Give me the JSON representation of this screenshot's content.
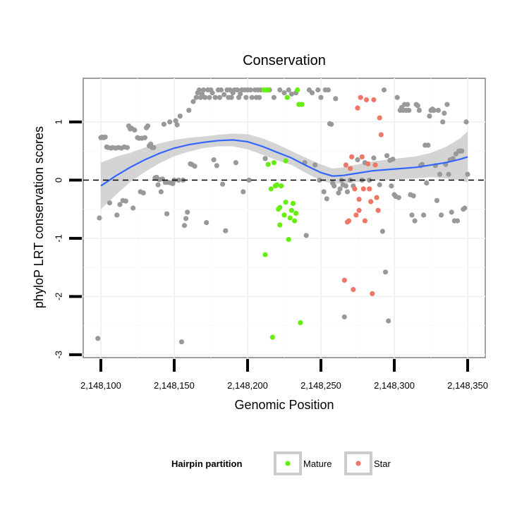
{
  "chart_data": {
    "type": "scatter",
    "title": "Conservation",
    "xlabel": "Genomic Position",
    "ylabel": "phyloP LRT conservation scores",
    "xlim": [
      2148088,
      2148362
    ],
    "ylim": [
      -3.05,
      1.75
    ],
    "x_ticks": [
      2148100,
      2148150,
      2148200,
      2148250,
      2148300,
      2148350
    ],
    "x_tick_labels": [
      "2,148,100",
      "2,148,150",
      "2,148,200",
      "2,148,250",
      "2,148,300",
      "2,148,350"
    ],
    "y_ticks": [
      -3,
      -2,
      -1,
      0,
      1
    ],
    "y_tick_labels": [
      "-3",
      "-2",
      "-1",
      "0",
      "1"
    ],
    "reference_line": {
      "y": 0,
      "style": "dashed"
    },
    "colors": {
      "other": "#999999",
      "mature": "#66ee11",
      "star": "#ee7766",
      "smooth_line": "#3366ff",
      "confidence_band": "#cccccc"
    },
    "legend": {
      "title": "Hairpin partition",
      "entries": [
        {
          "label": "Mature",
          "color": "#66ee11"
        },
        {
          "label": "Star",
          "color": "#ee7766"
        }
      ],
      "position": "bottom"
    },
    "series": [
      {
        "name": "Other",
        "points": [
          [
            2148098,
            -2.72
          ],
          [
            2148099,
            -0.65
          ],
          [
            2148100,
            0.73
          ],
          [
            2148101,
            0.74
          ],
          [
            2148102,
            0.73
          ],
          [
            2148103,
            0.74
          ],
          [
            2148104,
            0.57
          ],
          [
            2148105,
            0.56
          ],
          [
            2148106,
            -0.39
          ],
          [
            2148107,
            0.55
          ],
          [
            2148108,
            0.56
          ],
          [
            2148110,
            0.55
          ],
          [
            2148111,
            -0.6
          ],
          [
            2148112,
            0.56
          ],
          [
            2148113,
            -0.42
          ],
          [
            2148114,
            0.55
          ],
          [
            2148115,
            -0.35
          ],
          [
            2148116,
            0.57
          ],
          [
            2148117,
            -0.36
          ],
          [
            2148118,
            0.56
          ],
          [
            2148119,
            0.93
          ],
          [
            2148120,
            0.88
          ],
          [
            2148121,
            0.89
          ],
          [
            2148122,
            -0.48
          ],
          [
            2148123,
            0.86
          ],
          [
            2148125,
            0.73
          ],
          [
            2148126,
            0.72
          ],
          [
            2148127,
            -0.2
          ],
          [
            2148128,
            0.72
          ],
          [
            2148129,
            -0.22
          ],
          [
            2148130,
            0.73
          ],
          [
            2148131,
            0.9
          ],
          [
            2148132,
            0.93
          ],
          [
            2148133,
            0.59
          ],
          [
            2148134,
            0.62
          ],
          [
            2148135,
            0.56
          ],
          [
            2148136,
            0.56
          ],
          [
            2148137,
            0.04
          ],
          [
            2148138,
            0.05
          ],
          [
            2148139,
            -0.08
          ],
          [
            2148140,
            0.01
          ],
          [
            2148141,
            -0.2
          ],
          [
            2148142,
            0.02
          ],
          [
            2148143,
            0.96
          ],
          [
            2148144,
            -0.04
          ],
          [
            2148145,
            -0.58
          ],
          [
            2148146,
            -0.04
          ],
          [
            2148147,
            1.0
          ],
          [
            2148148,
            -0.05
          ],
          [
            2148149,
            -0.06
          ],
          [
            2148150,
            0.0
          ],
          [
            2148151,
            1.02
          ],
          [
            2148152,
            0.95
          ],
          [
            2148153,
            0.0
          ],
          [
            2148154,
            1.1
          ],
          [
            2148155,
            -2.78
          ],
          [
            2148156,
            0.0
          ],
          [
            2148157,
            -0.78
          ],
          [
            2148158,
            -0.66
          ],
          [
            2148159,
            -0.55
          ],
          [
            2148160,
            1.2
          ],
          [
            2148161,
            0.28
          ],
          [
            2148162,
            0.27
          ],
          [
            2148163,
            1.35
          ],
          [
            2148164,
            0.24
          ],
          [
            2148165,
            1.42
          ],
          [
            2148166,
            1.5
          ],
          [
            2148167,
            1.55
          ],
          [
            2148168,
            1.42
          ],
          [
            2148169,
            1.48
          ],
          [
            2148170,
            1.55
          ],
          [
            2148171,
            1.42
          ],
          [
            2148172,
            -0.73
          ],
          [
            2148173,
            1.55
          ],
          [
            2148174,
            1.42
          ],
          [
            2148175,
            1.55
          ],
          [
            2148176,
            1.5
          ],
          [
            2148177,
            0.35
          ],
          [
            2148178,
            1.42
          ],
          [
            2148179,
            0.25
          ],
          [
            2148180,
            1.55
          ],
          [
            2148181,
            1.42
          ],
          [
            2148182,
            1.55
          ],
          [
            2148183,
            -0.07
          ],
          [
            2148184,
            1.47
          ],
          [
            2148185,
            -0.87
          ],
          [
            2148186,
            1.55
          ],
          [
            2148187,
            1.42
          ],
          [
            2148188,
            1.55
          ],
          [
            2148189,
            1.42
          ],
          [
            2148190,
            1.5
          ],
          [
            2148191,
            1.55
          ],
          [
            2148192,
            0.3
          ],
          [
            2148193,
            1.55
          ],
          [
            2148194,
            1.42
          ],
          [
            2148195,
            1.48
          ],
          [
            2148196,
            1.55
          ],
          [
            2148197,
            -0.2
          ],
          [
            2148198,
            1.55
          ],
          [
            2148199,
            1.42
          ],
          [
            2148200,
            1.55
          ],
          [
            2148201,
            0.0
          ],
          [
            2148202,
            1.55
          ],
          [
            2148203,
            1.42
          ],
          [
            2148205,
            1.55
          ],
          [
            2148206,
            1.42
          ],
          [
            2148207,
            1.55
          ],
          [
            2148208,
            1.42
          ],
          [
            2148209,
            1.55
          ],
          [
            2148212,
            0.37
          ],
          [
            2148215,
            1.55
          ],
          [
            2148218,
            1.42
          ],
          [
            2148222,
            1.55
          ],
          [
            2148225,
            1.5
          ],
          [
            2148228,
            1.55
          ],
          [
            2148230,
            1.48
          ],
          [
            2148233,
            1.5
          ],
          [
            2148239,
            0.3
          ],
          [
            2148240,
            -0.95
          ],
          [
            2148242,
            1.55
          ],
          [
            2148244,
            1.5
          ],
          [
            2148246,
            0.26
          ],
          [
            2148248,
            1.55
          ],
          [
            2148249,
            0.0
          ],
          [
            2148250,
            1.42
          ],
          [
            2148252,
            -0.2
          ],
          [
            2148253,
            1.55
          ],
          [
            2148254,
            -0.32
          ],
          [
            2148255,
            1.55
          ],
          [
            2148256,
            0.97
          ],
          [
            2148257,
            0.96
          ],
          [
            2148258,
            -0.05
          ],
          [
            2148259,
            -0.1
          ],
          [
            2148260,
            1.4
          ],
          [
            2148262,
            -0.22
          ],
          [
            2148263,
            -0.15
          ],
          [
            2148264,
            0.0
          ],
          [
            2148265,
            -0.08
          ],
          [
            2148266,
            -2.35
          ],
          [
            2148267,
            -0.1
          ],
          [
            2148268,
            -0.2
          ],
          [
            2148270,
            0.0
          ],
          [
            2148272,
            -0.1
          ],
          [
            2148275,
            0.35
          ],
          [
            2148278,
            0.0
          ],
          [
            2148280,
            0.3
          ],
          [
            2148283,
            0.0
          ],
          [
            2148286,
            0.38
          ],
          [
            2148290,
            -0.08
          ],
          [
            2148292,
            -0.88
          ],
          [
            2148293,
            1.55
          ],
          [
            2148294,
            -1.58
          ],
          [
            2148295,
            0.42
          ],
          [
            2148296,
            -2.42
          ],
          [
            2148297,
            0.34
          ],
          [
            2148298,
            -0.1
          ],
          [
            2148299,
            0.36
          ],
          [
            2148300,
            -0.25
          ],
          [
            2148301,
            -0.28
          ],
          [
            2148302,
            1.42
          ],
          [
            2148303,
            -0.3
          ],
          [
            2148304,
            1.2
          ],
          [
            2148305,
            1.25
          ],
          [
            2148306,
            1.2
          ],
          [
            2148307,
            1.3
          ],
          [
            2148308,
            1.2
          ],
          [
            2148309,
            1.3
          ],
          [
            2148310,
            1.2
          ],
          [
            2148311,
            -0.25
          ],
          [
            2148312,
            -0.6
          ],
          [
            2148313,
            -0.27
          ],
          [
            2148314,
            -0.7
          ],
          [
            2148315,
            1.3
          ],
          [
            2148316,
            1.28
          ],
          [
            2148317,
            1.2
          ],
          [
            2148318,
            0.25
          ],
          [
            2148319,
            0.27
          ],
          [
            2148320,
            -0.6
          ],
          [
            2148321,
            0.6
          ],
          [
            2148322,
            -0.05
          ],
          [
            2148323,
            0.6
          ],
          [
            2148324,
            1.1
          ],
          [
            2148325,
            1.2
          ],
          [
            2148326,
            1.22
          ],
          [
            2148327,
            1.2
          ],
          [
            2148328,
            0.25
          ],
          [
            2148329,
            -0.35
          ],
          [
            2148330,
            1.2
          ],
          [
            2148331,
            0.1
          ],
          [
            2148332,
            -0.6
          ],
          [
            2148333,
            1.0
          ],
          [
            2148334,
            1.15
          ],
          [
            2148335,
            0.27
          ],
          [
            2148336,
            1.3
          ],
          [
            2148337,
            0.1
          ],
          [
            2148338,
            0.35
          ],
          [
            2148339,
            -0.55
          ],
          [
            2148340,
            0.37
          ],
          [
            2148341,
            -0.7
          ],
          [
            2148342,
            0.45
          ],
          [
            2148343,
            -0.7
          ],
          [
            2148344,
            0.5
          ],
          [
            2148345,
            0.5
          ],
          [
            2148346,
            0.5
          ],
          [
            2148347,
            -0.5
          ],
          [
            2148348,
            -0.48
          ],
          [
            2148349,
            1.0
          ],
          [
            2148350,
            0.1
          ]
        ]
      },
      {
        "name": "Mature",
        "points": [
          [
            2148211,
            1.55
          ],
          [
            2148213,
            1.55
          ],
          [
            2148214,
            1.55
          ],
          [
            2148212,
            -1.28
          ],
          [
            2148214,
            0.27
          ],
          [
            2148216,
            -0.15
          ],
          [
            2148217,
            -2.7
          ],
          [
            2148218,
            0.3
          ],
          [
            2148219,
            -0.1
          ],
          [
            2148220,
            -0.08
          ],
          [
            2148221,
            -0.5
          ],
          [
            2148222,
            -0.47
          ],
          [
            2148222,
            -0.77
          ],
          [
            2148223,
            -0.1
          ],
          [
            2148225,
            -0.6
          ],
          [
            2148226,
            -0.38
          ],
          [
            2148226,
            0.33
          ],
          [
            2148227,
            1.42
          ],
          [
            2148228,
            -1.02
          ],
          [
            2148229,
            -0.65
          ],
          [
            2148230,
            -0.52
          ],
          [
            2148231,
            -0.4
          ],
          [
            2148232,
            -0.7
          ],
          [
            2148233,
            -0.57
          ],
          [
            2148234,
            1.55
          ],
          [
            2148235,
            1.3
          ],
          [
            2148236,
            -2.45
          ],
          [
            2148237,
            1.3
          ]
        ]
      },
      {
        "name": "Star",
        "points": [
          [
            2148266,
            -1.72
          ],
          [
            2148267,
            0.26
          ],
          [
            2148268,
            -0.72
          ],
          [
            2148269,
            -0.7
          ],
          [
            2148270,
            0.2
          ],
          [
            2148271,
            0.4
          ],
          [
            2148272,
            -1.88
          ],
          [
            2148273,
            -0.15
          ],
          [
            2148274,
            -0.6
          ],
          [
            2148275,
            1.24
          ],
          [
            2148276,
            -0.33
          ],
          [
            2148276,
            -0.52
          ],
          [
            2148277,
            1.42
          ],
          [
            2148278,
            0.4
          ],
          [
            2148279,
            -0.15
          ],
          [
            2148280,
            -0.7
          ],
          [
            2148281,
            1.38
          ],
          [
            2148282,
            0.28
          ],
          [
            2148283,
            -0.15
          ],
          [
            2148284,
            -0.37
          ],
          [
            2148285,
            -1.95
          ],
          [
            2148286,
            1.38
          ],
          [
            2148287,
            0.26
          ],
          [
            2148288,
            -0.3
          ],
          [
            2148289,
            -0.52
          ],
          [
            2148290,
            1.07
          ],
          [
            2148291,
            0.78
          ]
        ]
      }
    ],
    "smooth_fit": {
      "x": [
        2148100,
        2148110,
        2148120,
        2148130,
        2148140,
        2148150,
        2148160,
        2148170,
        2148180,
        2148190,
        2148200,
        2148210,
        2148220,
        2148230,
        2148240,
        2148250,
        2148258,
        2148265,
        2148275,
        2148285,
        2148295,
        2148305,
        2148315,
        2148325,
        2148335,
        2148345,
        2148350
      ],
      "y": [
        -0.1,
        0.07,
        0.22,
        0.35,
        0.46,
        0.55,
        0.61,
        0.65,
        0.68,
        0.69,
        0.66,
        0.58,
        0.48,
        0.38,
        0.25,
        0.13,
        0.07,
        0.08,
        0.12,
        0.16,
        0.18,
        0.2,
        0.22,
        0.26,
        0.3,
        0.36,
        0.4
      ],
      "lower": [
        -0.5,
        -0.26,
        -0.03,
        0.14,
        0.29,
        0.41,
        0.49,
        0.55,
        0.58,
        0.58,
        0.53,
        0.44,
        0.34,
        0.26,
        0.12,
        -0.01,
        -0.06,
        -0.06,
        -0.03,
        0.0,
        0.01,
        0.02,
        0.03,
        0.05,
        0.03,
        0.0,
        -0.04
      ],
      "upper": [
        0.3,
        0.4,
        0.47,
        0.56,
        0.63,
        0.69,
        0.73,
        0.75,
        0.78,
        0.8,
        0.79,
        0.72,
        0.62,
        0.5,
        0.38,
        0.27,
        0.2,
        0.22,
        0.27,
        0.32,
        0.35,
        0.38,
        0.41,
        0.47,
        0.57,
        0.72,
        0.84
      ]
    }
  }
}
